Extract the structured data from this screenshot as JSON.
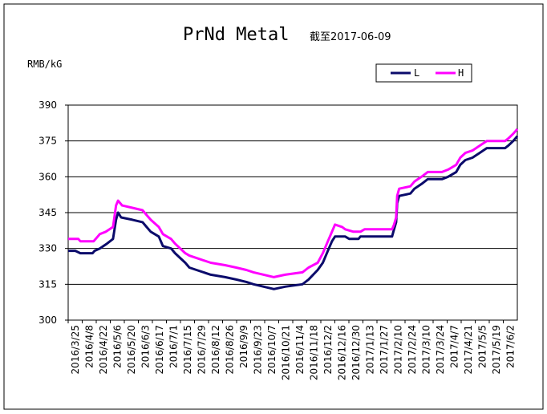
{
  "chart_data": {
    "type": "line",
    "title": "PrNd Metal",
    "subtitle": "截至2017-06-09",
    "ylabel": "RMB/kG",
    "ylim": [
      300,
      390
    ],
    "y_ticks": [
      300,
      315,
      330,
      345,
      360,
      375,
      390
    ],
    "grid": true,
    "legend_position": "top-right",
    "x_tick_labels": [
      "2016/3/25",
      "2016/4/8",
      "2016/4/22",
      "2016/5/6",
      "2016/5/20",
      "2016/6/3",
      "2016/6/17",
      "2016/7/1",
      "2016/7/15",
      "2016/7/29",
      "2016/8/12",
      "2016/8/26",
      "2016/9/9",
      "2016/9/23",
      "2016/10/7",
      "2016/10/21",
      "2016/11/4",
      "2016/11/18",
      "2016/12/2",
      "2016/12/16",
      "2016/12/30",
      "2017/1/13",
      "2017/1/27",
      "2017/2/10",
      "2017/2/24",
      "2017/3/10",
      "2017/3/24",
      "2017/4/7",
      "2017/4/21",
      "2017/5/5",
      "2017/5/19",
      "2017/6/2"
    ],
    "x_range": [
      "2016-03-25",
      "2017-06-09"
    ],
    "series": [
      {
        "name": "L",
        "color": "#0b0b6b",
        "points": [
          [
            "2016-03-25",
            329
          ],
          [
            "2016-04-01",
            329
          ],
          [
            "2016-04-06",
            328
          ],
          [
            "2016-04-18",
            328
          ],
          [
            "2016-04-20",
            329
          ],
          [
            "2016-04-25",
            330
          ],
          [
            "2016-05-02",
            332
          ],
          [
            "2016-05-08",
            334
          ],
          [
            "2016-05-11",
            342
          ],
          [
            "2016-05-13",
            345
          ],
          [
            "2016-05-16",
            343
          ],
          [
            "2016-05-27",
            342
          ],
          [
            "2016-06-06",
            341
          ],
          [
            "2016-06-10",
            339
          ],
          [
            "2016-06-14",
            337
          ],
          [
            "2016-06-22",
            335
          ],
          [
            "2016-06-26",
            331
          ],
          [
            "2016-07-04",
            330
          ],
          [
            "2016-07-08",
            328
          ],
          [
            "2016-07-13",
            326
          ],
          [
            "2016-07-18",
            324
          ],
          [
            "2016-07-22",
            322
          ],
          [
            "2016-07-29",
            321
          ],
          [
            "2016-08-12",
            319
          ],
          [
            "2016-08-26",
            318
          ],
          [
            "2016-09-06",
            317
          ],
          [
            "2016-09-16",
            316
          ],
          [
            "2016-09-23",
            315
          ],
          [
            "2016-10-13",
            313
          ],
          [
            "2016-10-24",
            314
          ],
          [
            "2016-11-10",
            315
          ],
          [
            "2016-11-16",
            317
          ],
          [
            "2016-11-25",
            321
          ],
          [
            "2016-11-30",
            324
          ],
          [
            "2016-12-05",
            329
          ],
          [
            "2016-12-09",
            333
          ],
          [
            "2016-12-12",
            335
          ],
          [
            "2016-12-22",
            335
          ],
          [
            "2016-12-26",
            334
          ],
          [
            "2017-01-04",
            334
          ],
          [
            "2017-01-06",
            335
          ],
          [
            "2017-02-06",
            335
          ],
          [
            "2017-02-08",
            338
          ],
          [
            "2017-02-10",
            341
          ],
          [
            "2017-02-11",
            349
          ],
          [
            "2017-02-13",
            352
          ],
          [
            "2017-02-24",
            353
          ],
          [
            "2017-02-28",
            355
          ],
          [
            "2017-03-07",
            357
          ],
          [
            "2017-03-13",
            359
          ],
          [
            "2017-03-27",
            359
          ],
          [
            "2017-04-02",
            360
          ],
          [
            "2017-04-10",
            362
          ],
          [
            "2017-04-14",
            365
          ],
          [
            "2017-04-19",
            367
          ],
          [
            "2017-04-26",
            368
          ],
          [
            "2017-05-03",
            370
          ],
          [
            "2017-05-10",
            372
          ],
          [
            "2017-05-28",
            372
          ],
          [
            "2017-05-31",
            373
          ],
          [
            "2017-06-05",
            375
          ],
          [
            "2017-06-09",
            377
          ]
        ]
      },
      {
        "name": "H",
        "color": "#ff00ff",
        "points": [
          [
            "2016-03-25",
            334
          ],
          [
            "2016-04-04",
            334
          ],
          [
            "2016-04-06",
            333
          ],
          [
            "2016-04-19",
            333
          ],
          [
            "2016-04-21",
            334
          ],
          [
            "2016-04-25",
            336
          ],
          [
            "2016-05-01",
            337
          ],
          [
            "2016-05-08",
            339
          ],
          [
            "2016-05-11",
            348
          ],
          [
            "2016-05-13",
            350
          ],
          [
            "2016-05-17",
            348
          ],
          [
            "2016-05-27",
            347
          ],
          [
            "2016-06-06",
            346
          ],
          [
            "2016-06-10",
            344
          ],
          [
            "2016-06-14",
            342
          ],
          [
            "2016-06-22",
            339
          ],
          [
            "2016-06-26",
            336
          ],
          [
            "2016-07-04",
            334
          ],
          [
            "2016-07-08",
            332
          ],
          [
            "2016-07-13",
            330
          ],
          [
            "2016-07-18",
            328
          ],
          [
            "2016-07-22",
            327
          ],
          [
            "2016-07-29",
            326
          ],
          [
            "2016-08-12",
            324
          ],
          [
            "2016-08-26",
            323
          ],
          [
            "2016-09-06",
            322
          ],
          [
            "2016-09-16",
            321
          ],
          [
            "2016-09-23",
            320
          ],
          [
            "2016-10-13",
            318
          ],
          [
            "2016-10-24",
            319
          ],
          [
            "2016-11-10",
            320
          ],
          [
            "2016-11-16",
            322
          ],
          [
            "2016-11-25",
            324
          ],
          [
            "2016-11-30",
            328
          ],
          [
            "2016-12-05",
            333
          ],
          [
            "2016-12-09",
            337
          ],
          [
            "2016-12-12",
            340
          ],
          [
            "2016-12-19",
            339
          ],
          [
            "2016-12-22",
            338
          ],
          [
            "2016-12-30",
            337
          ],
          [
            "2017-01-06",
            337
          ],
          [
            "2017-01-10",
            338
          ],
          [
            "2017-02-06",
            338
          ],
          [
            "2017-02-08",
            340
          ],
          [
            "2017-02-10",
            343
          ],
          [
            "2017-02-11",
            352
          ],
          [
            "2017-02-13",
            355
          ],
          [
            "2017-02-24",
            356
          ],
          [
            "2017-02-28",
            358
          ],
          [
            "2017-03-07",
            360
          ],
          [
            "2017-03-13",
            362
          ],
          [
            "2017-03-27",
            362
          ],
          [
            "2017-04-02",
            363
          ],
          [
            "2017-04-10",
            365
          ],
          [
            "2017-04-14",
            368
          ],
          [
            "2017-04-19",
            370
          ],
          [
            "2017-04-26",
            371
          ],
          [
            "2017-05-03",
            373
          ],
          [
            "2017-05-10",
            375
          ],
          [
            "2017-05-28",
            375
          ],
          [
            "2017-05-31",
            376
          ],
          [
            "2017-06-05",
            378
          ],
          [
            "2017-06-09",
            380
          ]
        ]
      }
    ]
  }
}
